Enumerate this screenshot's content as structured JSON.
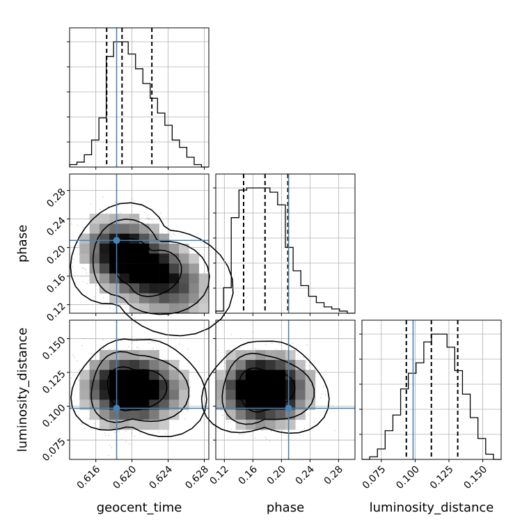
{
  "chart_data": {
    "type": "corner",
    "parameters": [
      "geocent_time",
      "phase",
      "luminosity_distance"
    ],
    "axis_labels": {
      "geocent_time": "geocent_time",
      "phase": "phase",
      "luminosity_distance": "luminosity_distance"
    },
    "ranges": {
      "geocent_time": [
        0.6131,
        0.6285
      ],
      "phase": [
        0.108,
        0.303
      ],
      "luminosity_distance": [
        0.0607,
        0.1636
      ]
    },
    "ticks": {
      "geocent_time": [
        0.616,
        0.62,
        0.624,
        0.628
      ],
      "phase": [
        0.12,
        0.16,
        0.2,
        0.24,
        0.28
      ],
      "luminosity_distance": [
        0.075,
        0.1,
        0.125,
        0.15
      ]
    },
    "tick_labels": {
      "geocent_time": [
        "0.616",
        "0.620",
        "0.624",
        "0.628"
      ],
      "phase": [
        "0.12",
        "0.16",
        "0.20",
        "0.24",
        "0.28"
      ],
      "luminosity_distance": [
        "0.075",
        "0.100",
        "0.125",
        "0.150"
      ],
      "phase_row": [
        "0.12",
        "0.16",
        "0.20",
        "0.24",
        "0.28"
      ],
      "luminosity_distance_row": [
        "0.075",
        "0.100",
        "0.125",
        "0.150"
      ]
    },
    "truths": {
      "geocent_time": 0.6183,
      "phase": 0.21,
      "luminosity_distance": 0.0985
    },
    "quantiles": {
      "geocent_time": [
        0.6172,
        0.6189,
        0.6222
      ],
      "phase": [
        0.147,
        0.177,
        0.209
      ],
      "luminosity_distance": [
        0.0935,
        0.112,
        0.1315
      ]
    },
    "histograms": {
      "geocent_time": [
        1,
        2,
        5,
        11,
        20,
        45,
        51,
        51,
        46,
        40,
        34,
        28,
        22,
        17,
        11,
        8,
        4,
        1,
        0
      ],
      "phase": [
        1,
        12,
        45,
        58,
        59,
        59,
        59,
        57,
        51,
        31,
        20,
        13,
        8,
        5,
        3,
        2,
        1,
        0
      ],
      "luminosity_distance": [
        0,
        1,
        4,
        11,
        17,
        27,
        33,
        37,
        45,
        48,
        48,
        43,
        34,
        25,
        16,
        8,
        2,
        0
      ]
    },
    "scatter_2d": {
      "phase_vs_geocent_time": {
        "blobs": [
          {
            "x": 0.6183,
            "y": 0.195,
            "w": 1.0
          },
          {
            "x": 0.621,
            "y": 0.175,
            "w": 0.8
          },
          {
            "x": 0.6235,
            "y": 0.155,
            "w": 0.55
          },
          {
            "x": 0.6255,
            "y": 0.14,
            "w": 0.35
          }
        ],
        "peaks": [
          {
            "x": 0.6177,
            "y": 0.198
          },
          {
            "x": 0.621,
            "y": 0.157
          }
        ]
      },
      "luminosity_distance_vs_geocent_time": {
        "blobs": [
          {
            "x": 0.6185,
            "y": 0.114,
            "w": 1.0
          },
          {
            "x": 0.6205,
            "y": 0.112,
            "w": 0.7
          },
          {
            "x": 0.623,
            "y": 0.112,
            "w": 0.45
          }
        ],
        "peaks": [
          {
            "x": 0.618,
            "y": 0.111
          }
        ]
      },
      "luminosity_distance_vs_phase": {
        "blobs": [
          {
            "x": 0.175,
            "y": 0.113,
            "w": 1.0
          },
          {
            "x": 0.155,
            "y": 0.112,
            "w": 0.6
          },
          {
            "x": 0.2,
            "y": 0.112,
            "w": 0.6
          }
        ],
        "peaks": [
          {
            "x": 0.165,
            "y": 0.11
          },
          {
            "x": 0.19,
            "y": 0.113
          }
        ]
      }
    },
    "colors": {
      "truth_line": "#4682b4",
      "contour": "#000000",
      "hist_line": "#000000",
      "grid": "#b0b0b0"
    },
    "grid": true
  }
}
